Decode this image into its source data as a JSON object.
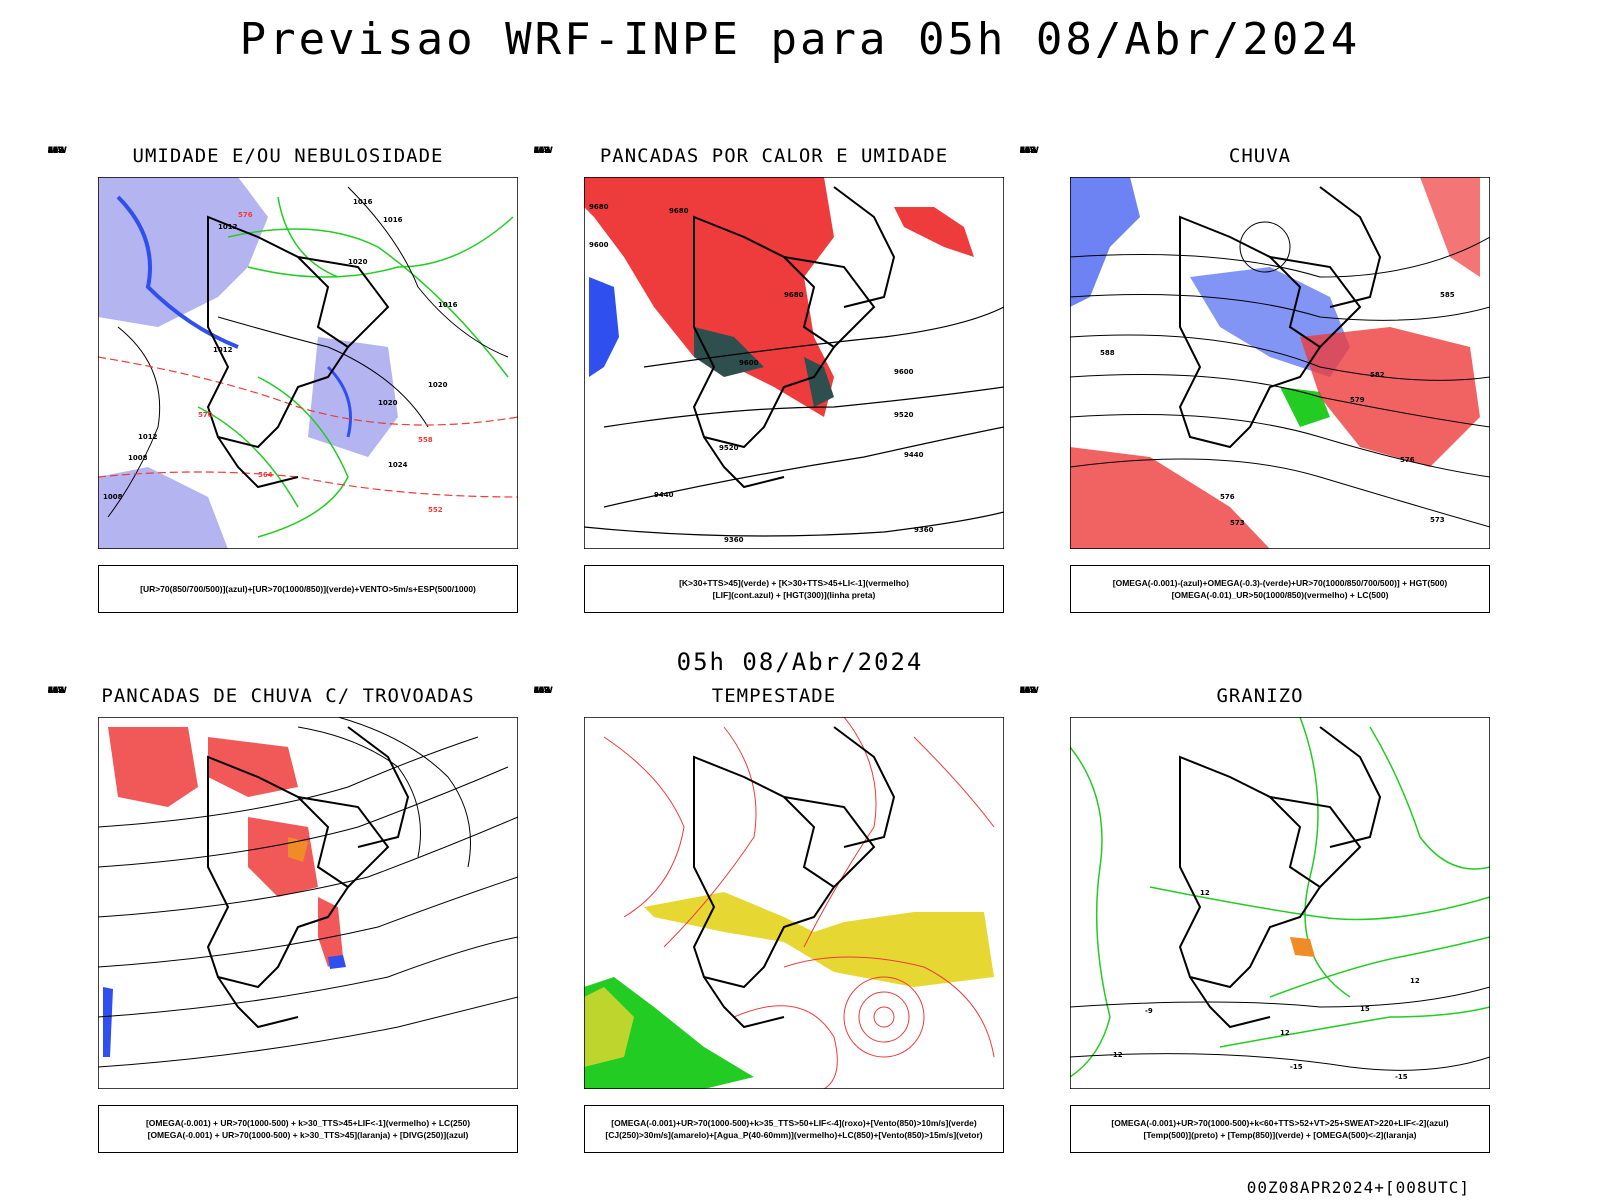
{
  "header": {
    "title": "Previsao WRF-INPE  para 05h 08/Abr/2024"
  },
  "middle": {
    "subtitle": "05h 08/Abr/2024"
  },
  "footer": {
    "run_label": "00Z08APR2024+[008UTC]"
  },
  "axes": {
    "lat_labels": [
      "12S",
      "15S",
      "18S",
      "21S",
      "24S",
      "27S",
      "30S",
      "33S",
      "36S",
      "39S",
      "42S"
    ],
    "lon_labels": [
      "70W",
      "65W",
      "60W",
      "55W",
      "50W",
      "45W",
      "40W",
      "35W",
      "30W"
    ]
  },
  "colors": {
    "red": "#ee3b3b",
    "blue": "#2f4fef",
    "green": "#22cc22",
    "lavender": "#b4b4f0",
    "yellow": "#e6d732",
    "dark_teal": "#2f4f4f",
    "orange": "#f08c28",
    "purple": "#7030a0"
  },
  "panels": [
    {
      "id": "umidade",
      "title": "UMIDADE E/OU NEBULOSIDADE",
      "legend": [
        "[UR>70(850/700/500)](azul)+[UR>70(1000/850)](verde)+VENTO>5m/s+ESP(500/1000)"
      ],
      "contour_labels": [
        "1016",
        "1016",
        "1012",
        "1020",
        "1012",
        "1020",
        "1016",
        "1012",
        "1008",
        "1024",
        "1008",
        "1020",
        "576",
        "570",
        "564",
        "558",
        "552"
      ]
    },
    {
      "id": "pancadas-calor",
      "title": "PANCADAS POR CALOR E UMIDADE",
      "legend": [
        "[K>30+TTS>45](verde) + [K>30+TTS>45+LI<-1](vermelho)",
        "[LIF](cont.azul) + [HGT(300)](linha preta)"
      ],
      "contour_labels": [
        "9680",
        "9680",
        "9680",
        "9600",
        "9600",
        "9520",
        "9440",
        "9360",
        "9600",
        "9520",
        "9440",
        "9360"
      ]
    },
    {
      "id": "chuva",
      "title": "CHUVA",
      "legend": [
        "[OMEGA(-0.001)-(azul)+OMEGA(-0.3)-(verde)+UR>70(1000/850/700/500)] + HGT(500)",
        "[OMEGA(-0.01)_UR>50(1000/850)(vermelho) + LC(500)"
      ],
      "contour_labels": [
        "585",
        "582",
        "576",
        "573",
        "579",
        "576",
        "573",
        "588"
      ]
    },
    {
      "id": "pancadas-trovoadas",
      "title": "PANCADAS DE CHUVA C/ TROVOADAS",
      "legend": [
        "[OMEGA(-0.001) + UR>70(1000-500) + k>30_TTS>45+LIF<-1](vermelho) + LC(250)",
        "[OMEGA(-0.001) + UR>70(1000-500) + k>30_TTS>45](laranja) + [DIVG(250)](azul)"
      ]
    },
    {
      "id": "tempestade",
      "title": "TEMPESTADE",
      "legend": [
        "[OMEGA(-0.001)+UR>70(1000-500)+k>35_TTS>50+LIF<-4](roxo)+[Vento(850)>10m/s](verde)",
        "[CJ(250)>30m/s](amarelo)+[Agua_P(40-60mm)](vermelho)+LC(850)+[Vento(850)>15m/s](vetor)"
      ]
    },
    {
      "id": "granizo",
      "title": "GRANIZO",
      "legend": [
        "[OMEGA(-0.001)+UR>70(1000-500)+k<60+TTS>52+VT>25+SWEAT>220+LIF<-2](azul)",
        "[Temp(500)](preto) + [Temp(850)](verde) + [OMEGA(500)<-2](laranja)"
      ],
      "contour_labels": [
        "12",
        "15",
        "12",
        "-15",
        "-12",
        "12",
        "-9",
        "-15"
      ]
    }
  ]
}
